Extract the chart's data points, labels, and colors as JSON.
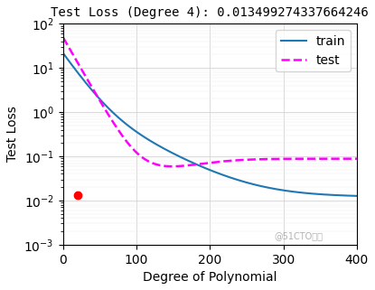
{
  "title": "Test Loss (Degree 4): 0.013499274337664246",
  "xlabel": "Degree of Polynomial",
  "ylabel": "Test Loss",
  "xlim": [
    0,
    400
  ],
  "ylim_log": [
    -3,
    2
  ],
  "train_color": "#1f77b4",
  "test_color": "magenta",
  "red_dot_x": 20,
  "red_dot_y": 0.013499274337664246,
  "watermark": "@51CTO博客",
  "legend_train": "train",
  "legend_test": "test",
  "title_fontsize": 10,
  "axis_fontsize": 10
}
